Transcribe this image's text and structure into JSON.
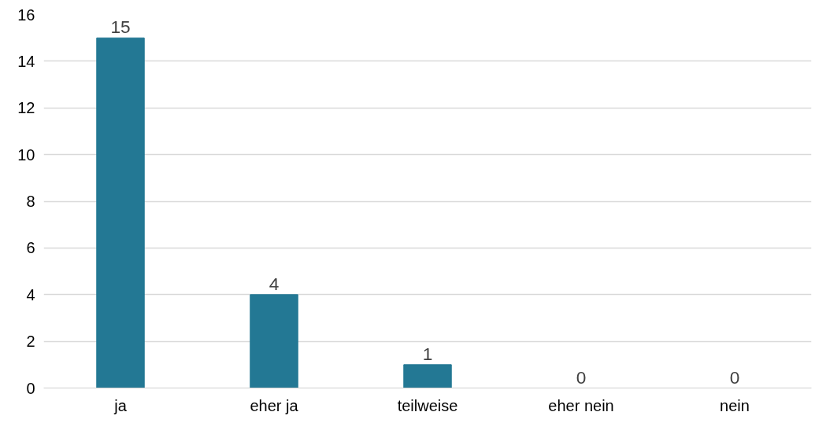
{
  "chart_data": {
    "type": "bar",
    "categories": [
      "ja",
      "eher ja",
      "teilweise",
      "eher nein",
      "nein"
    ],
    "values": [
      15,
      4,
      1,
      0,
      0
    ],
    "color": "#237894",
    "ylim": [
      0,
      16
    ],
    "yticks": [
      0,
      2,
      4,
      6,
      8,
      10,
      12,
      14,
      16
    ],
    "grid": "y",
    "data_labels": true
  }
}
